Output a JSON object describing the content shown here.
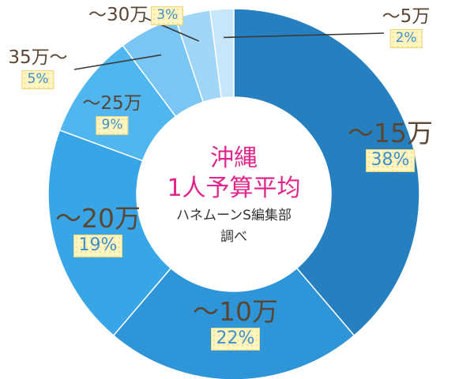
{
  "chart_data": {
    "type": "pie",
    "title_lines": [
      "沖縄",
      "1人予算平均"
    ],
    "credit_lines": [
      "ハネムーンS編集部",
      "調べ"
    ],
    "slices": [
      {
        "label": "〜15万",
        "percent_label": "38%",
        "value": 38,
        "color": "#2680bf"
      },
      {
        "label": "〜10万",
        "percent_label": "22%",
        "value": 22,
        "color": "#2d95d8"
      },
      {
        "label": "〜20万",
        "percent_label": "19%",
        "value": 19,
        "color": "#38a5e6"
      },
      {
        "label": "〜25万",
        "percent_label": "9%",
        "value": 9,
        "color": "#4fb6ef"
      },
      {
        "label": "35万〜",
        "percent_label": "5%",
        "value": 5,
        "color": "#79c5f3"
      },
      {
        "label": "〜30万",
        "percent_label": "3%",
        "value": 3,
        "color": "#a2d6f7"
      },
      {
        "label": "〜5万",
        "percent_label": "2%",
        "value": 2,
        "color": "#c7e6fa"
      }
    ],
    "colors": {
      "title": "#e0268a",
      "label_text": "#5a4632",
      "percent_text": "#3d8fcc",
      "percent_badge": "#fff6c4"
    }
  }
}
